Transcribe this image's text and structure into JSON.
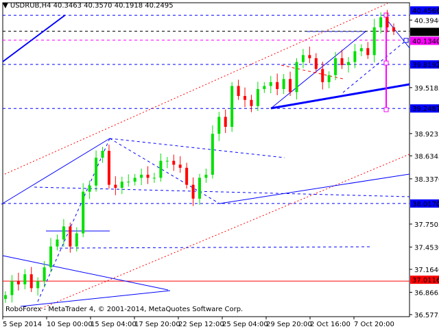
{
  "header": {
    "symbol": "USDRUB,H4",
    "ohlc": "40.3463 40.3570 40.1918 40.2495"
  },
  "copyright": "RoboForex - MetaTrader 4, © 2001-2014, MetaQuotes Software Corp.",
  "colors": {
    "bull": "#00e000",
    "bear": "#ff0000",
    "lines": "#0000ff",
    "magenta": "#ff00ff",
    "background": "#ffffff"
  },
  "chart_data": {
    "type": "candlestick",
    "title": "USDRUB,H4",
    "ylim": [
      36.5775,
      40.55
    ],
    "x_tick_labels": [
      "5 Sep 2014",
      "10 Sep 00:00",
      "15 Sep 04:00",
      "17 Sep 20:00",
      "22 Sep 12:00",
      "25 Sep 04:00",
      "29 Sep 20:00",
      "2 Oct 16:00",
      "7 Oct 20:00"
    ],
    "y_tick_labels": [
      "40.3940",
      "39.5185",
      "38.9235",
      "38.6345",
      "38.3370",
      "37.7505",
      "37.4530",
      "37.1640",
      "36.8665",
      "36.5775"
    ],
    "y_ticks": [
      40.394,
      39.5185,
      38.9235,
      38.6345,
      38.337,
      37.7505,
      37.453,
      37.164,
      36.8665,
      36.5775
    ],
    "closes": [
      36.83,
      37.01,
      36.97,
      37.1,
      36.92,
      37.01,
      37.19,
      37.46,
      37.55,
      37.72,
      37.46,
      37.63,
      38.17,
      38.25,
      38.61,
      38.7,
      38.26,
      38.22,
      38.3,
      38.3,
      38.35,
      38.39,
      38.35,
      38.35,
      38.57,
      38.57,
      38.52,
      38.48,
      38.26,
      38.08,
      38.35,
      38.39,
      38.92,
      39.14,
      39.01,
      39.54,
      39.41,
      39.36,
      39.28,
      39.5,
      39.54,
      39.59,
      39.5,
      39.63,
      39.46,
      39.85,
      39.94,
      39.9,
      39.76,
      39.59,
      39.68,
      39.9,
      39.81,
      39.85,
      39.99,
      40.03,
      39.94,
      40.3,
      40.43,
      40.3,
      40.2495
    ],
    "price_levels": [
      {
        "label": "40.4566",
        "price": 40.4566,
        "color": "#0000ff"
      },
      {
        "label": "40.2495",
        "price": 40.2495,
        "color": "#000000"
      },
      {
        "label": "40.1340",
        "price": 40.134,
        "color": "#ff00ff"
      },
      {
        "label": "39.8192",
        "price": 39.8192,
        "color": "#0000ff"
      },
      {
        "label": "39.2487",
        "price": 39.2487,
        "color": "#0000ff"
      },
      {
        "label": "38.0170",
        "price": 38.017,
        "color": "#0000ff"
      },
      {
        "label": "37.0116",
        "price": 37.0116,
        "color": "#ff0000"
      }
    ]
  }
}
